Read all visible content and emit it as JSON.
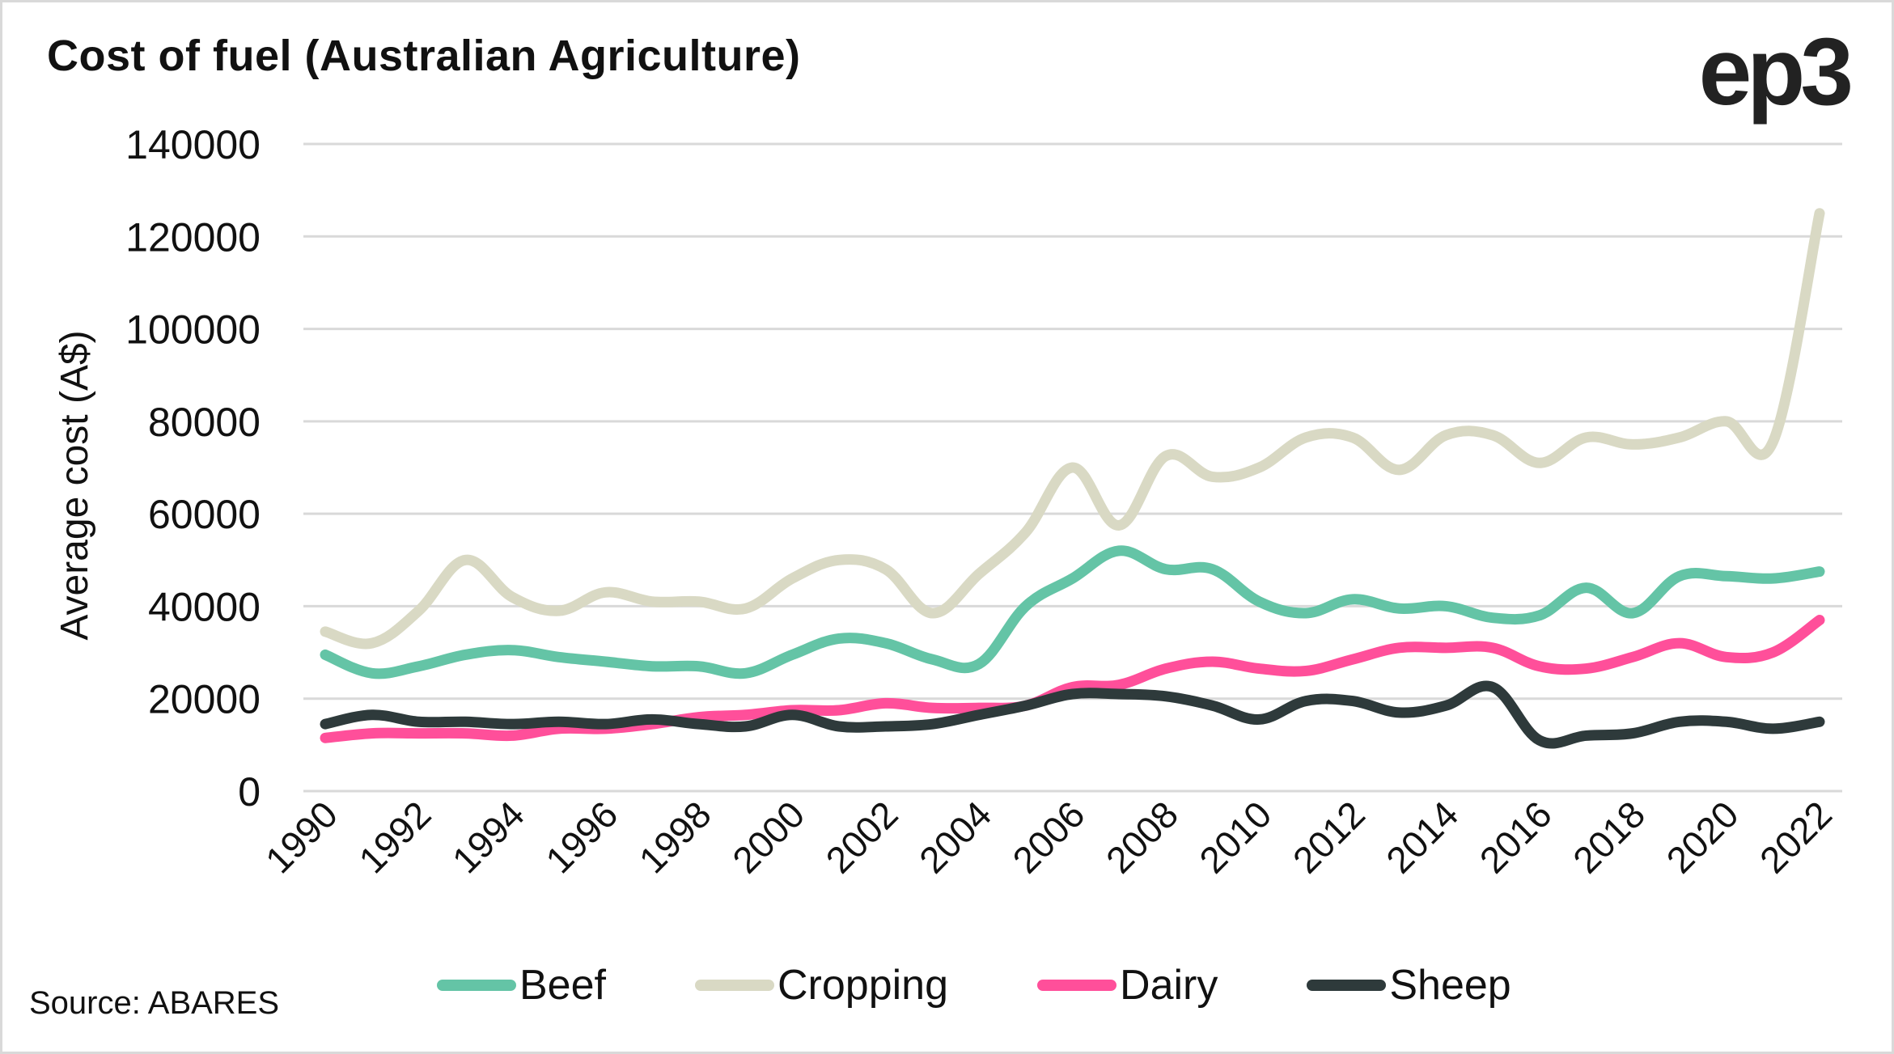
{
  "logo": "ep3",
  "source": "Source: ABARES",
  "chart_data": {
    "type": "line",
    "title": "Cost of fuel (Australian Agriculture)",
    "xlabel": "",
    "ylabel": "Average cost (A$)",
    "ylim": [
      0,
      140000
    ],
    "yticks": [
      "0",
      "20000",
      "40000",
      "60000",
      "80000",
      "100000",
      "120000",
      "140000"
    ],
    "ytick_values": [
      0,
      20000,
      40000,
      60000,
      80000,
      100000,
      120000,
      140000
    ],
    "x": [
      1990,
      1991,
      1992,
      1993,
      1994,
      1995,
      1996,
      1997,
      1998,
      1999,
      2000,
      2001,
      2002,
      2003,
      2004,
      2005,
      2006,
      2007,
      2008,
      2009,
      2010,
      2011,
      2012,
      2013,
      2014,
      2015,
      2016,
      2017,
      2018,
      2019,
      2020,
      2021,
      2022
    ],
    "xticks": [
      "1990",
      "1992",
      "1994",
      "1996",
      "1998",
      "2000",
      "2002",
      "2004",
      "2006",
      "2008",
      "2010",
      "2012",
      "2014",
      "2016",
      "2018",
      "2020",
      "2022"
    ],
    "grid": "horizontal",
    "legend_position": "bottom",
    "series": [
      {
        "name": "Beef",
        "color": "#64c4a6",
        "values": [
          29500,
          25500,
          27000,
          29500,
          30500,
          29000,
          28000,
          27000,
          27000,
          25500,
          29500,
          33000,
          32000,
          28500,
          27500,
          40000,
          46000,
          52000,
          48000,
          48000,
          41000,
          38500,
          41500,
          39500,
          40000,
          37500,
          38000,
          44000,
          38500,
          46500,
          46500,
          46000,
          47500
        ]
      },
      {
        "name": "Cropping",
        "color": "#d9d9c4",
        "values": [
          34500,
          32000,
          39000,
          50000,
          42000,
          39000,
          43000,
          41000,
          41000,
          39500,
          46000,
          50000,
          48000,
          38500,
          47000,
          56000,
          70000,
          57500,
          72500,
          68000,
          70000,
          76500,
          76500,
          69500,
          77000,
          77000,
          71000,
          76500,
          75000,
          76500,
          80000,
          75500,
          125000
        ]
      },
      {
        "name": "Dairy",
        "color": "#ff4f9a",
        "values": [
          11500,
          12500,
          12500,
          12500,
          12000,
          13500,
          13500,
          14500,
          16000,
          16500,
          17500,
          17500,
          19000,
          18000,
          18000,
          18500,
          22500,
          23000,
          26500,
          28000,
          26500,
          26000,
          28500,
          31000,
          31000,
          31000,
          27000,
          26500,
          29000,
          32000,
          29000,
          30000,
          37000
        ]
      },
      {
        "name": "Sheep",
        "color": "#2e3a3b",
        "values": [
          14500,
          16500,
          15000,
          15000,
          14500,
          15000,
          14500,
          15500,
          14500,
          14000,
          16500,
          14000,
          14000,
          14500,
          16500,
          18500,
          21000,
          21000,
          20500,
          18500,
          15500,
          19500,
          19500,
          17000,
          18500,
          22500,
          11000,
          12000,
          12500,
          15000,
          15000,
          13500,
          15000
        ]
      }
    ]
  }
}
